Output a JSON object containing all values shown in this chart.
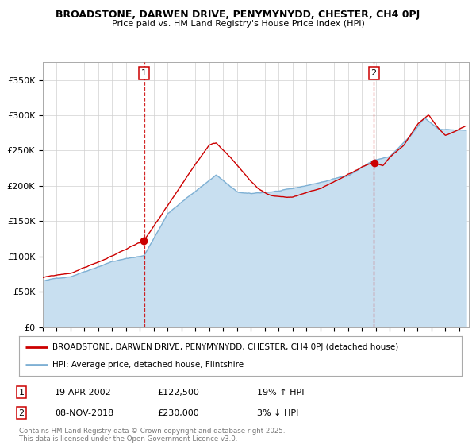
{
  "title1": "BROADSTONE, DARWEN DRIVE, PENYMYNYDD, CHESTER, CH4 0PJ",
  "title2": "Price paid vs. HM Land Registry's House Price Index (HPI)",
  "ylabel_ticks": [
    "£0",
    "£50K",
    "£100K",
    "£150K",
    "£200K",
    "£250K",
    "£300K",
    "£350K"
  ],
  "ytick_values": [
    0,
    50000,
    100000,
    150000,
    200000,
    250000,
    300000,
    350000
  ],
  "ylim": [
    0,
    375000
  ],
  "xlim_start": 1995.0,
  "xlim_end": 2025.7,
  "transaction1": {
    "date": "19-APR-2002",
    "price": 122500,
    "year": 2002.29,
    "pct": "19%",
    "dir": "↑",
    "label": "1"
  },
  "transaction2": {
    "date": "08-NOV-2018",
    "price": 230000,
    "year": 2018.85,
    "pct": "3%",
    "dir": "↓",
    "label": "2"
  },
  "legend_line1": "BROADSTONE, DARWEN DRIVE, PENYMYNYDD, CHESTER, CH4 0PJ (detached house)",
  "legend_line2": "HPI: Average price, detached house, Flintshire",
  "footer": "Contains HM Land Registry data © Crown copyright and database right 2025.\nThis data is licensed under the Open Government Licence v3.0.",
  "property_color": "#cc0000",
  "hpi_color": "#7eb0d4",
  "hpi_fill_color": "#c8dff0",
  "vline_color": "#cc0000",
  "bg_color": "#ffffff",
  "grid_color": "#d0d0d0"
}
